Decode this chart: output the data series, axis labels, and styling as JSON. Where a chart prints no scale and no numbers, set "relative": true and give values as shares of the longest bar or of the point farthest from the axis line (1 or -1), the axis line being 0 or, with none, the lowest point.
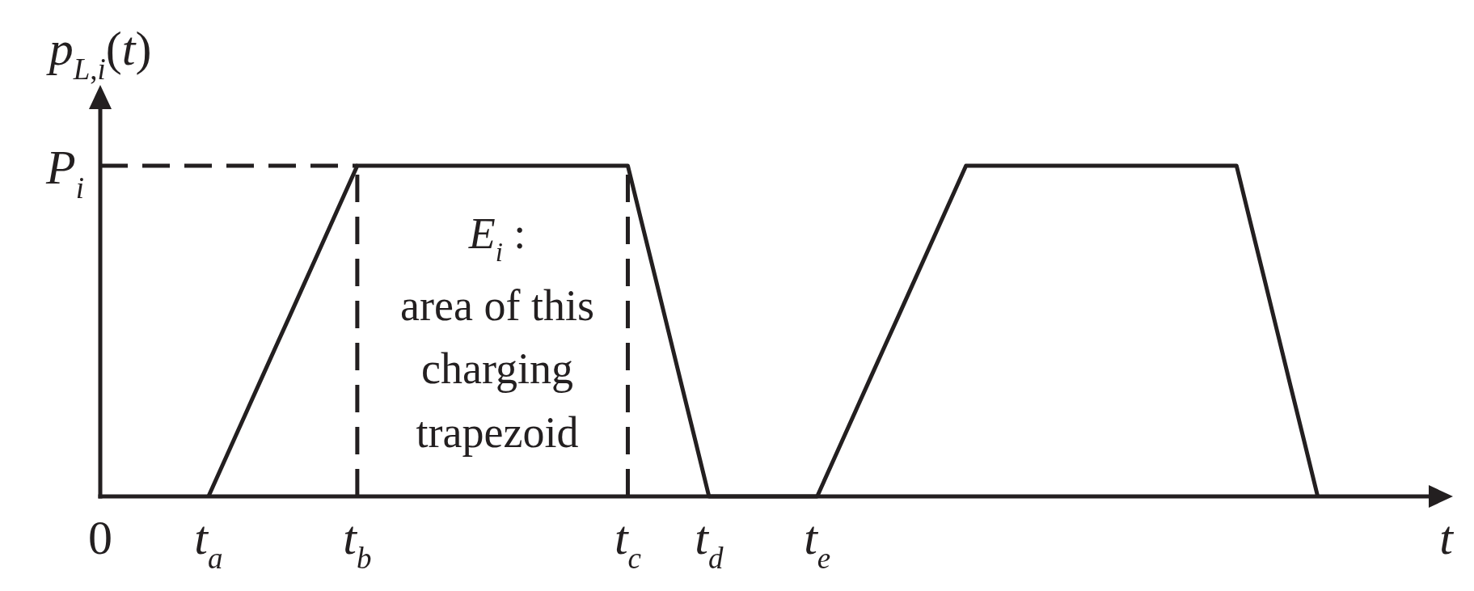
{
  "chart_data": {
    "type": "line",
    "xlabel": "t",
    "ylabel": "p$_{L,i}$(t)",
    "relative": true,
    "tick_labels": "x",
    "marker": "none",
    "legend": "left",
    "categories": [
      "0",
      null,
      null,
      null,
      null,
      null,
      null,
      null,
      "t$_{a}$",
      null,
      null,
      null,
      null,
      null,
      null,
      null,
      null,
      null,
      null,
      "t$_{b}$",
      null,
      null,
      null,
      null,
      null,
      null,
      null,
      null,
      null,
      null,
      null,
      null,
      null,
      null,
      null,
      null,
      null,
      null,
      null,
      "t$_{c}$",
      null,
      null,
      null,
      null,
      null,
      "t$_{d}$",
      null,
      null,
      null,
      null,
      null,
      null,
      null,
      "t$_{e}$",
      null,
      null,
      null,
      null,
      null,
      null,
      null,
      null,
      null,
      null,
      null,
      null,
      null,
      null,
      null,
      null,
      null,
      null,
      null,
      null,
      null,
      null,
      null,
      null,
      null,
      null,
      null,
      null,
      null,
      null,
      null,
      null,
      null,
      null,
      null,
      null,
      null,
      null,
      null,
      null,
      null,
      null,
      null,
      null,
      null,
      null,
      null
    ],
    "series": [
      {
        "color": "#231f20",
        "line_style": "solid",
        "values": [
          null,
          null,
          null,
          null,
          null,
          null,
          null,
          null,
          0,
          0.091,
          0.182,
          0.273,
          0.364,
          0.455,
          0.545,
          0.636,
          0.727,
          0.818,
          0.909,
          1,
          1,
          1,
          1,
          1,
          1,
          1,
          1,
          1,
          1,
          1,
          1,
          1,
          1,
          1,
          1,
          1,
          1,
          1,
          1,
          1,
          0.833,
          0.667,
          0.5,
          0.333,
          0.167,
          0,
          0,
          0,
          0,
          0,
          0,
          0,
          0,
          0,
          0.091,
          0.182,
          0.273,
          0.364,
          0.455,
          0.545,
          0.636,
          0.727,
          0.818,
          0.909,
          1,
          1,
          1,
          1,
          1,
          1,
          1,
          1,
          1,
          1,
          1,
          1,
          1,
          1,
          1,
          1,
          1,
          1,
          1,
          1,
          1,
          0.833,
          0.667,
          0.5,
          0.333,
          0.167,
          0,
          null,
          null,
          null,
          null,
          null,
          null,
          null,
          null,
          null,
          null
        ]
      },
      {
        "name": "P$_{i}$",
        "color": "#231f20",
        "line_style": "dashed",
        "values": [
          1,
          1,
          1,
          1,
          1,
          1,
          1,
          1,
          1,
          1,
          1,
          1,
          1,
          1,
          1,
          1,
          1,
          1,
          1,
          1,
          null,
          null,
          null,
          null,
          null,
          null,
          null,
          null,
          null,
          null,
          null,
          null,
          null,
          null,
          null,
          null,
          null,
          null,
          null,
          null,
          null,
          null,
          null,
          null,
          null,
          null,
          null,
          null,
          null,
          null,
          null,
          null,
          null,
          null,
          null,
          null,
          null,
          null,
          null,
          null,
          null,
          null,
          null,
          null,
          null,
          null,
          null,
          null,
          null,
          null,
          null,
          null,
          null,
          null,
          null,
          null,
          null,
          null,
          null,
          null,
          null,
          null,
          null,
          null,
          null,
          null,
          null,
          null,
          null,
          null,
          null,
          null,
          null,
          null,
          null,
          null,
          null,
          null,
          null,
          null,
          null
        ]
      }
    ],
    "ref_lines": [
      {
        "axis": "x",
        "value": "t$_{b}$",
        "color": "#231f20",
        "line_style": "dashed"
      },
      {
        "axis": "x",
        "value": "t$_{c}$",
        "color": "#231f20",
        "line_style": "dashed"
      }
    ],
    "annotations": [
      "E$_{i}$ :",
      "area of this charging trapezoid"
    ]
  }
}
